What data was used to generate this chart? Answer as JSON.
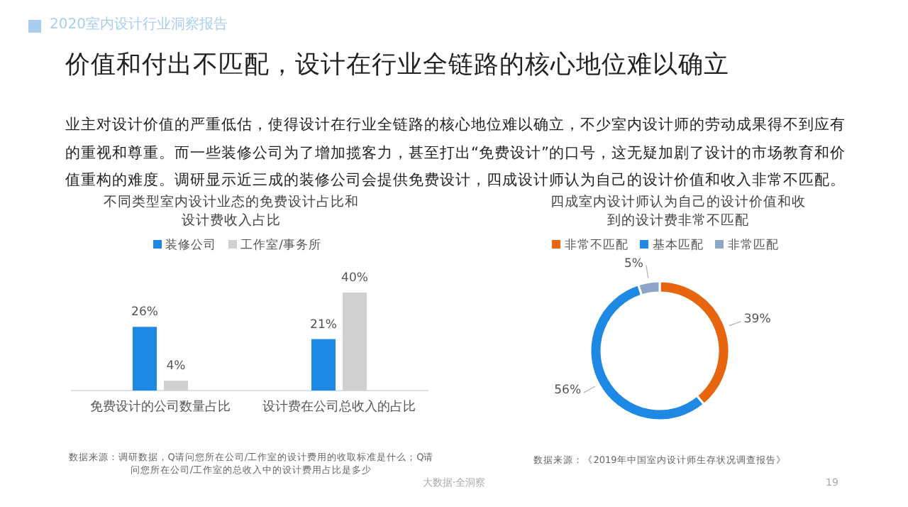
{
  "chart_data": [
    {
      "type": "other",
      "title": "价值和付出不匹配，设计在行业全链路的核心地位难以确立",
      "subtitle": "业主对设计价值的严重低估，使得设计在行业全链路的核心地位难以确立，不少室内设计师的劳动成果得不到应有的重视和尊重。而一些装修公司为了增加揽客力，甚至打出“免费设计”的口号，这无疑加剧了设计的市场教育和价值重构的难度。调研显示近三成的装修公司会提供免费设计，四成设计师认为自己的设计价值和收入非常不匹配。",
      "annotations": [
        "2020室内设计行业洞察报告",
        "大数据·全洞察",
        "19"
      ]
    },
    {
      "type": "bar",
      "title": "不同类型室内设计业态的免费设计占比和设计费收入占比",
      "categories": [
        "免费设计的公司数量占比",
        "设计费在公司总收入的占比"
      ],
      "series": [
        {
          "name": "装修公司",
          "color": "#1e88e5",
          "values": [
            26,
            21
          ],
          "value_labels": [
            "26%",
            "21%"
          ]
        },
        {
          "name": "工作室/事务所",
          "color": "#d0d0d0",
          "values": [
            4,
            40
          ],
          "value_labels": [
            "4%",
            "40%"
          ]
        }
      ],
      "legend": "top",
      "annotations": [
        "数据来源：调研数据，Q请问您所在公司/工作室的设计费用的收取标准是什么；Q请问您所在公司/工作室的总收入中的设计费用占比是多少"
      ]
    },
    {
      "type": "donut",
      "title": "四成室内设计师认为自己的设计价值和收到的设计费非常不匹配",
      "categories": [
        "非常不匹配",
        "基本匹配",
        "非常匹配"
      ],
      "values": [
        39,
        56,
        5
      ],
      "value_labels": [
        "39%",
        "56%",
        "5%"
      ],
      "colors": [
        "#e8650f",
        "#1e88e5",
        "#8ea5c8"
      ],
      "legend": "top",
      "annotations": [
        "数据来源：《2019年中国室内设计师生存状况调查报告》"
      ]
    }
  ]
}
